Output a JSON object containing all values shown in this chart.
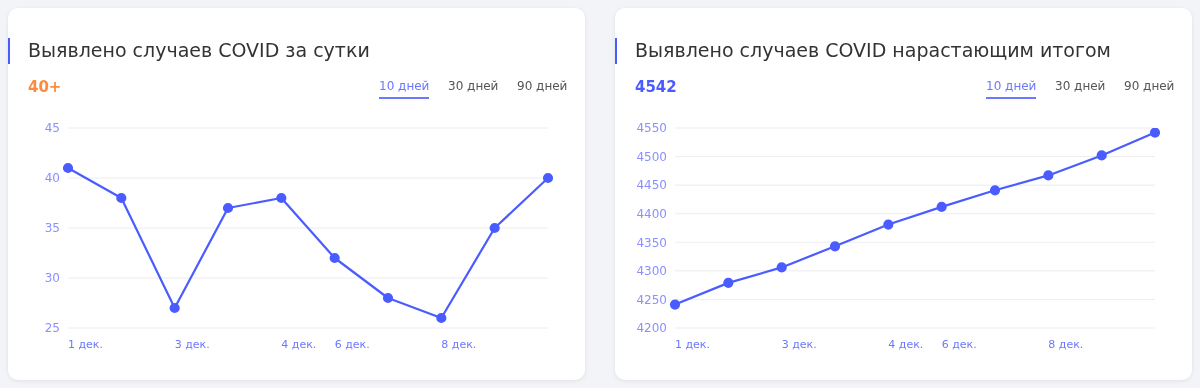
{
  "chart_data": [
    {
      "type": "line",
      "title": "Выявлено случаев COVID за сутки",
      "annotations": [
        "40+",
        "10 дней",
        "30 дней",
        "90 дней"
      ],
      "categories": [
        "1 дек.",
        null,
        "3 дек.",
        null,
        "4 дек.",
        "6 дек.",
        null,
        "8 дек.",
        null,
        null
      ],
      "series": [
        {
          "color": "#4a5cff",
          "values": [
            41,
            38,
            27,
            37,
            38,
            32,
            28,
            26,
            35,
            40
          ]
        }
      ],
      "ylim": [
        25,
        45
      ],
      "yticks": [
        25,
        30,
        35,
        40,
        45
      ],
      "grid": "y",
      "marker": "circle",
      "line_style": "solid"
    },
    {
      "type": "line",
      "title": "Выявлено случаев COVID нарастающим итогом",
      "annotations": [
        "4542",
        "10 дней",
        "30 дней",
        "90 дней"
      ],
      "categories": [
        "1 дек.",
        null,
        "3 дек.",
        null,
        "4 дек.",
        "6 дек.",
        null,
        "8 дек.",
        null,
        null
      ],
      "series": [
        {
          "color": "#4a5cff",
          "values": [
            4241,
            4279,
            4306,
            4343,
            4381,
            4412,
            4441,
            4467,
            4502,
            4542
          ]
        }
      ],
      "ylim": [
        4200,
        4550
      ],
      "yticks": [
        4200,
        4250,
        4300,
        4350,
        4400,
        4450,
        4500,
        4550
      ],
      "grid": "y",
      "marker": "circle",
      "line_style": "solid"
    }
  ]
}
